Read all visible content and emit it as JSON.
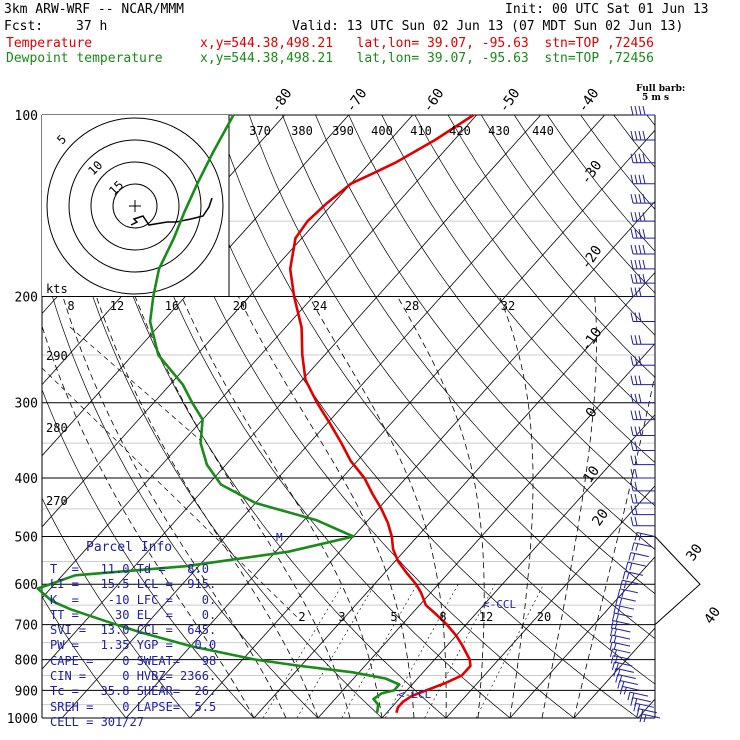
{
  "header": {
    "model": "3km ARW-WRF -- NCAR/MMM",
    "init": "Init: 00 UTC Sat 01 Jun 13",
    "fcst_label": "Fcst:",
    "fcst_value": "37 h",
    "valid": "Valid: 13 UTC Sun 02 Jun 13 (07 MDT Sun 02 Jun 13)",
    "temp_label": "Temperature",
    "temp_info": "x,y=544.38,498.21   lat,lon= 39.07, -95.63  stn=TOP ,72456",
    "dew_label": "Dewpoint temperature",
    "dew_info": "x,y=544.38,498.21   lat,lon= 39.07, -95.63  stn=TOP ,72456"
  },
  "barb_legend": {
    "line1": "Full barb:",
    "line2": "5 m s"
  },
  "hodograph": {
    "units": "kts",
    "ring_labels": [
      "5",
      "10",
      "15"
    ],
    "speed_labels": [
      "8",
      "12",
      "16",
      "20",
      "24",
      "28",
      "32"
    ],
    "dir_labels": [
      "290",
      "280",
      "270"
    ],
    "theta_labels": [
      "370",
      "380",
      "390",
      "400",
      "410",
      "420",
      "430",
      "440"
    ]
  },
  "parcel": {
    "title": "Parcel Info",
    "rows": [
      "T  =   11.0 Td =   8.0",
      "LI =   15.5 LCL =  915.",
      "K  =    -10 LFC =    0.",
      "TT =     30 EL  =    0.",
      "SVI =  13.0 CCL =  645.",
      "PW =   1.35 YGP =   0.0",
      "CAPE =    0 SWEAT=   98",
      "CIN =     0 HVBZ= 2366.",
      "Tc =   35.8 SHEAR=  26.",
      "SREH =    0 LAPSE=  5.5",
      "CELL = 301/27"
    ]
  },
  "annotations": {
    "ccl": "<-CCL",
    "lcl": "<-LCL",
    "level_marker": "M"
  },
  "chart_data": {
    "type": "line",
    "title": "",
    "y_axis": "pressure (hPa), log scale",
    "x_axis": "temperature (deg C), skewed",
    "pressure_ticks": [
      100,
      200,
      300,
      400,
      500,
      600,
      700,
      800,
      900,
      1000
    ],
    "isotherm_labels": [
      -80,
      -70,
      -60,
      -50,
      -40,
      -30,
      -20,
      -10,
      0,
      10,
      20,
      30,
      40
    ],
    "mixing_ratio_labels": [
      2,
      3,
      5,
      8,
      12,
      20
    ],
    "series": [
      {
        "name": "Temperature",
        "color": "#e00000",
        "p": [
          980,
          960,
          940,
          920,
          900,
          875,
          850,
          820,
          800,
          780,
          760,
          730,
          700,
          670,
          650,
          620,
          600,
          575,
          550,
          525,
          500,
          475,
          450,
          425,
          400,
          375,
          350,
          325,
          300,
          275,
          250,
          225,
          200,
          180,
          160,
          150,
          140,
          130,
          125,
          120,
          110,
          100
        ],
        "t": [
          11.5,
          11.0,
          11.0,
          11.5,
          13.0,
          15.0,
          16.5,
          16.5,
          15.5,
          14.0,
          12.5,
          10.0,
          7.0,
          3.5,
          1.0,
          -1.5,
          -3.5,
          -6.5,
          -9.5,
          -12.0,
          -14.0,
          -16.5,
          -19.5,
          -23.0,
          -26.5,
          -31.0,
          -35.0,
          -39.5,
          -44.5,
          -49.5,
          -53.5,
          -57.5,
          -63.0,
          -67.5,
          -71.0,
          -71.5,
          -71.0,
          -70.0,
          -68.0,
          -66.0,
          -63.0,
          -60.5
        ]
      },
      {
        "name": "Dewpoint temperature",
        "color": "#1a8a1a",
        "p": [
          980,
          950,
          930,
          910,
          900,
          880,
          860,
          840,
          820,
          800,
          760,
          720,
          690,
          660,
          640,
          610,
          580,
          560,
          530,
          500,
          470,
          440,
          410,
          380,
          350,
          320,
          300,
          280,
          250,
          220,
          200,
          180,
          160,
          145,
          130,
          115,
          100
        ],
        "t": [
          8.5,
          7.5,
          6.0,
          6.5,
          8.0,
          8.0,
          5.0,
          -1.0,
          -10.0,
          -18.0,
          -30.0,
          -40.0,
          -47.0,
          -54.0,
          -58.0,
          -62.0,
          -58.0,
          -42.0,
          -28.0,
          -20.0,
          -28.0,
          -40.0,
          -48.0,
          -53.0,
          -57.0,
          -60.0,
          -64.0,
          -68.0,
          -76.0,
          -82.0,
          -85.0,
          -88.0,
          -90.0,
          -92.0,
          -94.0,
          -96.0,
          -98.0
        ]
      }
    ],
    "hodograph_trace": [
      [
        -18,
        -9
      ],
      [
        -16,
        -8
      ],
      [
        -17,
        -7
      ],
      [
        -14,
        -6
      ],
      [
        -12,
        -9
      ],
      [
        -6,
        -8
      ],
      [
        -3,
        -8
      ],
      [
        2,
        -7
      ],
      [
        6,
        -6
      ],
      [
        8,
        -3
      ],
      [
        9,
        0
      ]
    ],
    "wind_barb_pressures": [
      1000,
      980,
      960,
      940,
      920,
      900,
      880,
      860,
      840,
      820,
      800,
      780,
      760,
      740,
      720,
      700,
      680,
      660,
      640,
      620,
      600,
      580,
      560,
      540,
      520,
      500,
      480,
      460,
      440,
      420,
      400,
      380,
      360,
      340,
      320,
      300,
      280,
      260,
      240,
      220,
      200,
      190,
      180,
      170,
      160,
      150,
      140,
      130,
      120,
      110,
      100
    ]
  }
}
